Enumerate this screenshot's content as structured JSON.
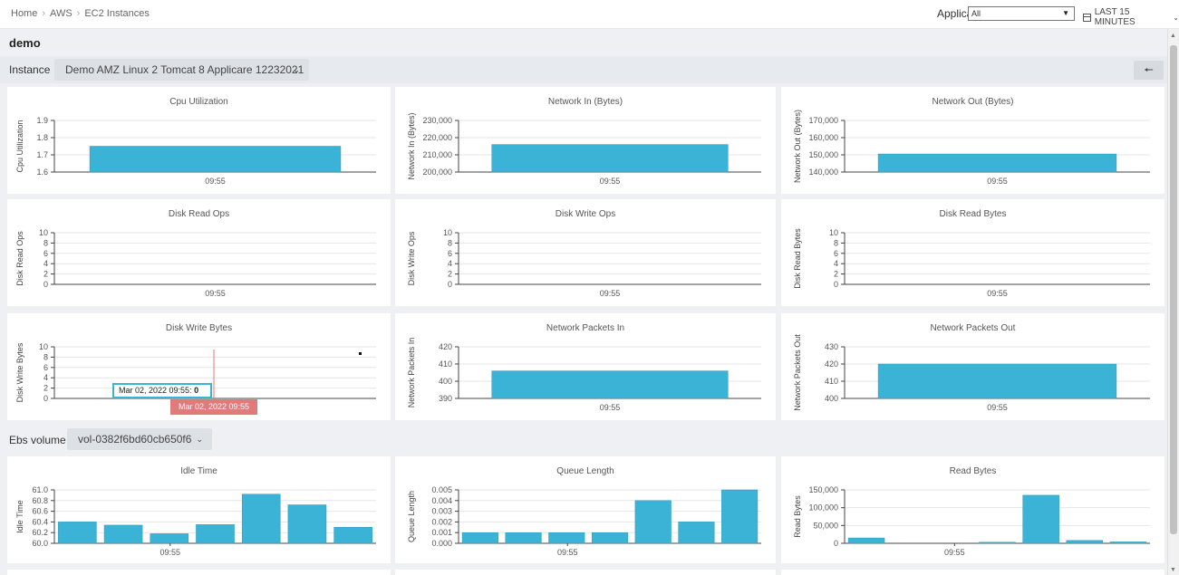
{
  "breadcrumb": [
    "Home",
    "AWS",
    "EC2 Instances"
  ],
  "header": {
    "application_label": "Application",
    "application_value": "All",
    "time_range": "LAST 15 MINUTES"
  },
  "page_title": "demo",
  "instance": {
    "label": "Instance",
    "value": "Demo AMZ Linux 2 Tomcat 8 Applicare 12232021"
  },
  "ebs": {
    "label": "Ebs volume",
    "value": "vol-0382f6bd60cb650f6"
  },
  "tooltip": {
    "text": "Mar 02, 2022 09:55: ",
    "value": "0",
    "time_flag": "Mar 02, 2022 09:55"
  },
  "colors": {
    "bar": "#3bb3d6",
    "bar_stroke": "#2a9ab8",
    "crosshair": "#e07b7b"
  },
  "icons": {
    "back": "arrow-left-icon",
    "calendar": "calendar-icon",
    "chevron": "chevron-down-icon"
  },
  "chart_data": [
    {
      "type": "bar",
      "title": "Cpu Utilization",
      "ylabel": "Cpu Utilization",
      "categories": [
        "09:55"
      ],
      "values": [
        1.75
      ],
      "ylim": [
        1.6,
        1.9
      ],
      "yticks": [
        "1.9",
        "1.8",
        "1.7",
        "1.6"
      ]
    },
    {
      "type": "bar",
      "title": "Network In (Bytes)",
      "ylabel": "Network In (Bytes)",
      "categories": [
        "09:55"
      ],
      "values": [
        216000
      ],
      "ylim": [
        200000,
        230000
      ],
      "yticks": [
        "230,000",
        "220,000",
        "210,000",
        "200,000"
      ]
    },
    {
      "type": "bar",
      "title": "Network Out (Bytes)",
      "ylabel": "Network Out (Bytes)",
      "categories": [
        "09:55"
      ],
      "values": [
        150500
      ],
      "ylim": [
        140000,
        170000
      ],
      "yticks": [
        "170,000",
        "160,000",
        "150,000",
        "140,000"
      ]
    },
    {
      "type": "bar",
      "title": "Disk Read Ops",
      "ylabel": "Disk Read Ops",
      "categories": [
        "09:55"
      ],
      "values": [
        0
      ],
      "ylim": [
        0,
        10
      ],
      "yticks": [
        "10",
        "8",
        "6",
        "4",
        "2",
        "0"
      ]
    },
    {
      "type": "bar",
      "title": "Disk Write Ops",
      "ylabel": "Disk Write Ops",
      "categories": [
        "09:55"
      ],
      "values": [
        0
      ],
      "ylim": [
        0,
        10
      ],
      "yticks": [
        "10",
        "8",
        "6",
        "4",
        "2",
        "0"
      ]
    },
    {
      "type": "bar",
      "title": "Disk Read Bytes",
      "ylabel": "Disk Read Bytes",
      "categories": [
        "09:55"
      ],
      "values": [
        0
      ],
      "ylim": [
        0,
        10
      ],
      "yticks": [
        "10",
        "8",
        "6",
        "4",
        "2",
        "0"
      ]
    },
    {
      "type": "bar",
      "title": "Disk Write Bytes",
      "ylabel": "Disk Write Bytes",
      "categories": [
        "09:55"
      ],
      "values": [
        0
      ],
      "ylim": [
        0,
        10
      ],
      "yticks": [
        "10",
        "8",
        "6",
        "4",
        "2",
        "0"
      ]
    },
    {
      "type": "bar",
      "title": "Network Packets In",
      "ylabel": "Network Packets In",
      "categories": [
        "09:55"
      ],
      "values": [
        406
      ],
      "ylim": [
        390,
        420
      ],
      "yticks": [
        "420",
        "410",
        "400",
        "390"
      ]
    },
    {
      "type": "bar",
      "title": "Network Packets Out",
      "ylabel": "Network Packets Out",
      "categories": [
        "09:55"
      ],
      "values": [
        420
      ],
      "ylim": [
        400,
        430
      ],
      "yticks": [
        "430",
        "420",
        "410",
        "400"
      ]
    },
    {
      "type": "bar",
      "title": "Idle Time",
      "ylabel": "Idle Time",
      "xtick": "09:55",
      "values": [
        60.4,
        60.34,
        60.18,
        60.35,
        60.92,
        60.72,
        60.3
      ],
      "ylim": [
        60.0,
        61.0
      ],
      "yticks": [
        "61.0",
        "60.8",
        "60.6",
        "60.4",
        "60.2",
        "60.0"
      ]
    },
    {
      "type": "bar",
      "title": "Queue Length",
      "ylabel": "Queue Length",
      "xtick": "09:55",
      "values": [
        0.001,
        0.001,
        0.001,
        0.001,
        0.004,
        0.002,
        0.005
      ],
      "ylim": [
        0,
        0.005
      ],
      "yticks": [
        "0.005",
        "0.004",
        "0.003",
        "0.002",
        "0.001",
        "0.000"
      ]
    },
    {
      "type": "bar",
      "title": "Read Bytes",
      "ylabel": "Read Bytes",
      "xtick": "09:55",
      "values": [
        15000,
        0,
        0,
        3000,
        135000,
        8000,
        4000
      ],
      "ylim": [
        0,
        150000
      ],
      "yticks": [
        "150,000",
        "100,000",
        "50,000",
        "0"
      ]
    }
  ]
}
